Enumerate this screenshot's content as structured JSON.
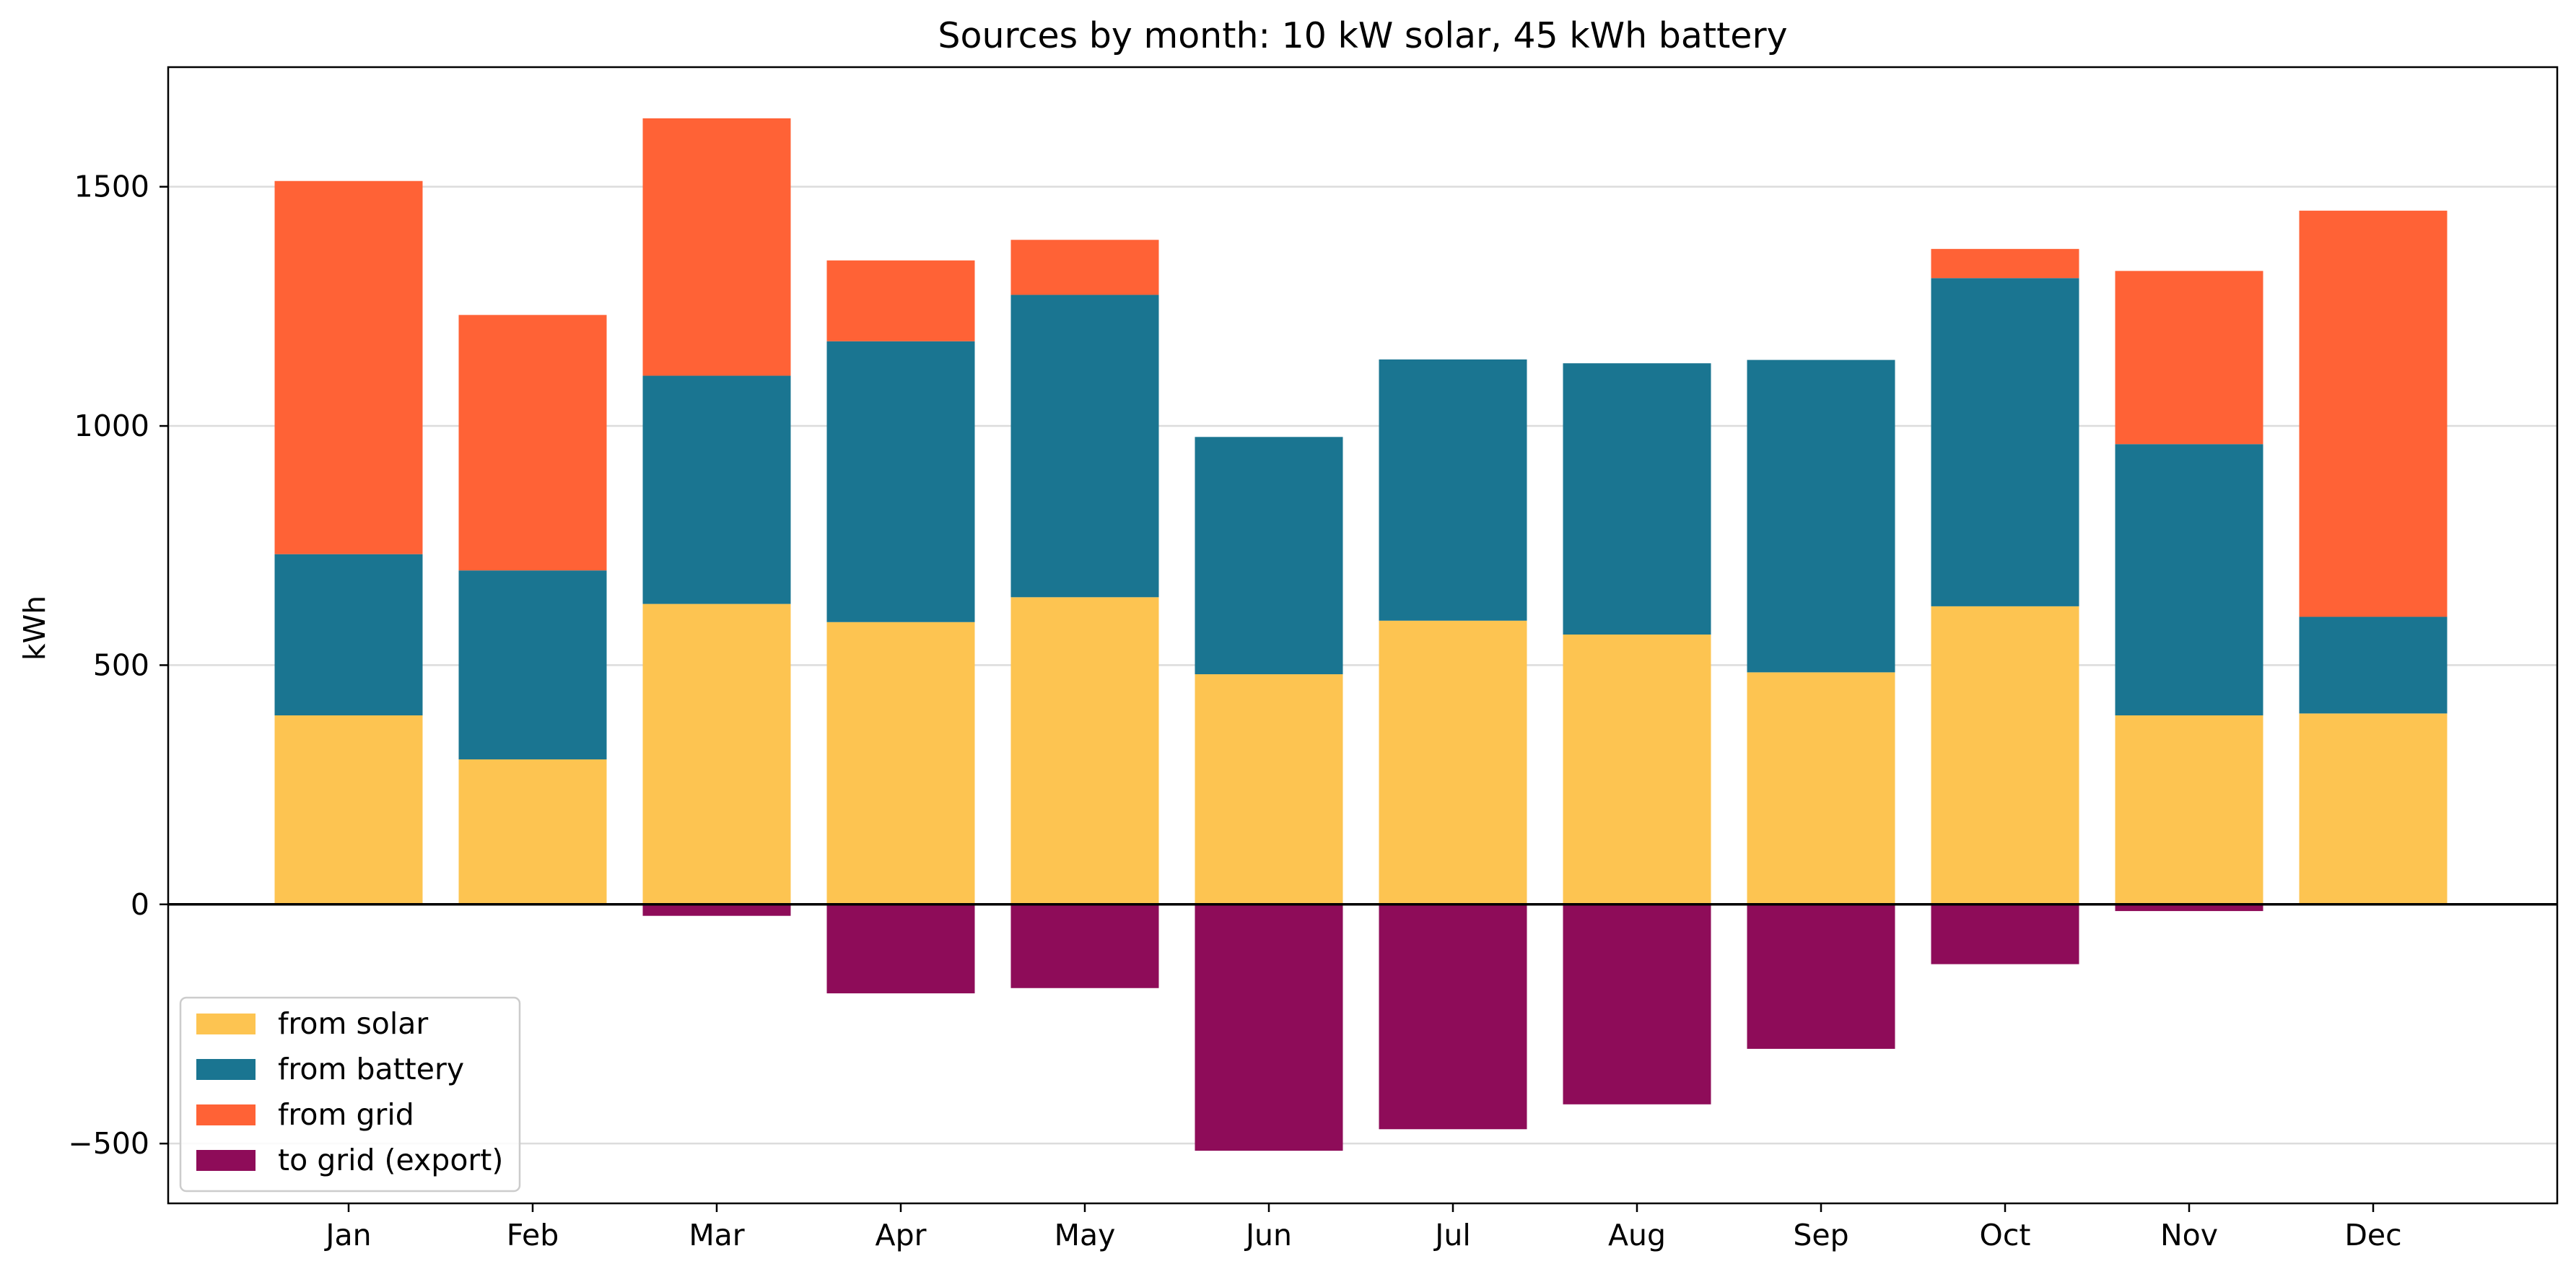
{
  "chart_data": {
    "type": "bar",
    "stacked": true,
    "title": "Sources by month:  10 kW solar, 45 kWh battery",
    "xlabel": "",
    "ylabel": "kWh",
    "ylim": [
      -625,
      1750
    ],
    "yticks": [
      -500,
      0,
      500,
      1000,
      1500
    ],
    "ytick_labels": [
      "−500",
      "0",
      "500",
      "1000",
      "1500"
    ],
    "grid": "horizontal",
    "legend_position": "lower-left",
    "categories": [
      "Jan",
      "Feb",
      "Mar",
      "Apr",
      "May",
      "Jun",
      "Jul",
      "Aug",
      "Sep",
      "Oct",
      "Nov",
      "Dec"
    ],
    "series": [
      {
        "name": "from solar",
        "color": "#FDC451",
        "values": [
          395,
          303,
          628,
          590,
          642,
          481,
          593,
          564,
          485,
          623,
          395,
          399
        ]
      },
      {
        "name": "from battery",
        "color": "#1A7591",
        "values": [
          337,
          395,
          477,
          587,
          632,
          496,
          546,
          567,
          653,
          686,
          567,
          202
        ]
      },
      {
        "name": "from grid",
        "color": "#FF6236",
        "values": [
          780,
          534,
          538,
          169,
          115,
          0,
          0,
          0,
          0,
          61,
          362,
          849
        ]
      },
      {
        "name": "to grid (export)",
        "color": "#8E0C59",
        "values": [
          0,
          0,
          -24,
          -186,
          -175,
          -515,
          -470,
          -418,
          -302,
          -125,
          -14,
          0
        ]
      }
    ]
  }
}
